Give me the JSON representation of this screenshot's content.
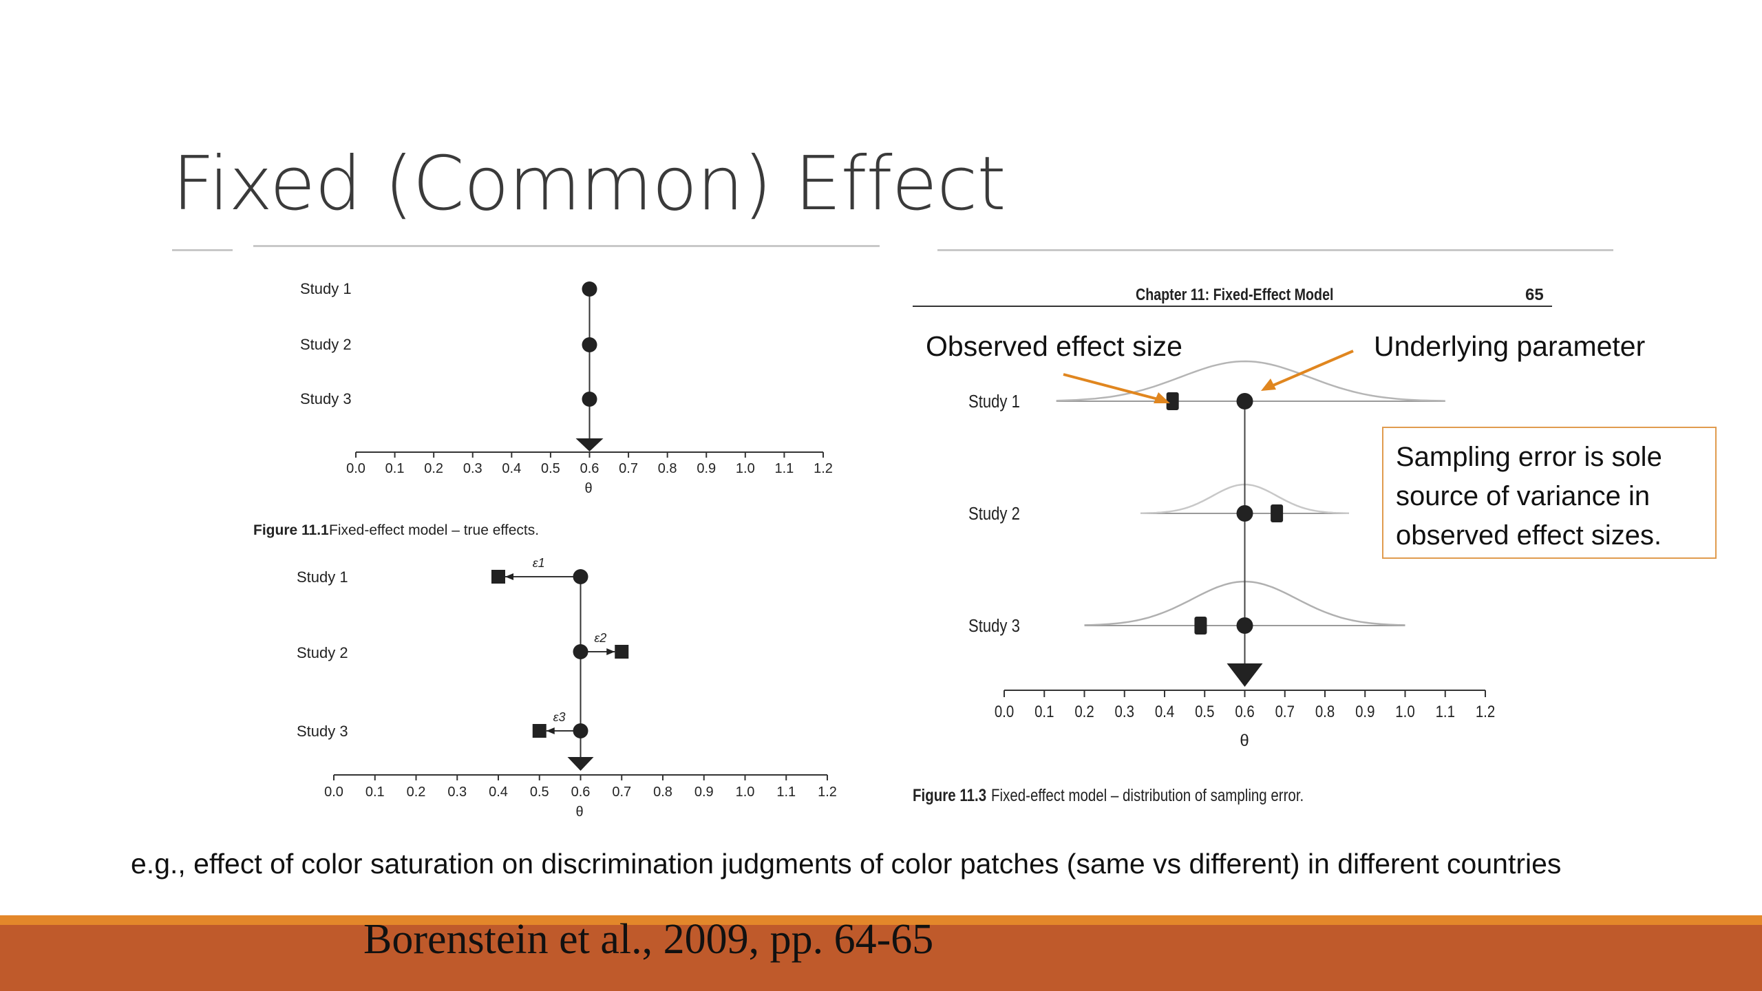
{
  "slide": {
    "title": "Fixed (Common) Effect",
    "example_text": "e.g., effect of color saturation on discrimination judgments of color patches (same vs different) in different countries",
    "citation": "Borenstein et al., 2009, pp. 64-65"
  },
  "figure_11_1": {
    "caption_bold": "Figure 11.1",
    "caption_text": "Fixed-effect model – true effects.",
    "studies": [
      "Study 1",
      "Study 2",
      "Study 3"
    ],
    "true_effects": [
      0.6,
      0.6,
      0.6
    ],
    "summary": 0.6,
    "x_ticks": [
      "0.0",
      "0.1",
      "0.2",
      "0.3",
      "0.4",
      "0.5",
      "0.6",
      "0.7",
      "0.8",
      "0.9",
      "1.0",
      "1.1",
      "1.2"
    ],
    "x_label": "θ"
  },
  "figure_11_2": {
    "studies": [
      "Study 1",
      "Study 2",
      "Study 3"
    ],
    "true_effects": [
      0.6,
      0.6,
      0.6
    ],
    "observed_effects": [
      0.4,
      0.7,
      0.5
    ],
    "error_labels": [
      "ε1",
      "ε2",
      "ε3"
    ],
    "summary": 0.6,
    "x_ticks": [
      "0.0",
      "0.1",
      "0.2",
      "0.3",
      "0.4",
      "0.5",
      "0.6",
      "0.7",
      "0.8",
      "0.9",
      "1.0",
      "1.1",
      "1.2"
    ],
    "x_label": "θ"
  },
  "figure_11_3": {
    "header": "Chapter 11: Fixed-Effect Model",
    "page": "65",
    "caption_bold": "Figure 11.3",
    "caption_text": "Fixed-effect model – distribution of sampling error.",
    "studies": [
      "Study 1",
      "Study 2",
      "Study 3"
    ],
    "true_effects": [
      0.6,
      0.6,
      0.6
    ],
    "observed_effects": [
      0.42,
      0.68,
      0.49
    ],
    "summary": 0.6,
    "x_ticks": [
      "0.0",
      "0.1",
      "0.2",
      "0.3",
      "0.4",
      "0.5",
      "0.6",
      "0.7",
      "0.8",
      "0.9",
      "1.0",
      "1.1",
      "1.2"
    ],
    "x_label": "θ",
    "annotation_left": "Observed effect size",
    "annotation_right": "Underlying parameter",
    "note": "Sampling error is sole source of variance in observed effect sizes.",
    "arrow_color": "#e0861f"
  }
}
